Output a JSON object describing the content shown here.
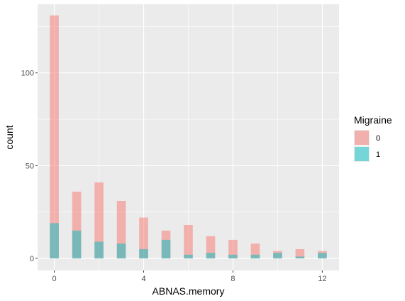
{
  "chart_data": {
    "type": "bar",
    "title": "",
    "xlabel": "ABNAS.memory",
    "ylabel": "count",
    "xlim": [
      -0.75,
      12.75
    ],
    "ylim": [
      -6.5,
      137
    ],
    "x_ticks": [
      0,
      4,
      8,
      12
    ],
    "x_tick_labels": [
      "0",
      "4",
      "8",
      "12"
    ],
    "y_ticks": [
      0,
      50,
      100
    ],
    "y_tick_labels": [
      "0",
      "50",
      "100"
    ],
    "grid": true,
    "position": "identity",
    "legend": {
      "title": "Migraine",
      "placement": "right"
    },
    "x": [
      0,
      1,
      2,
      3,
      4,
      5,
      6,
      7,
      8,
      9,
      10,
      11,
      12
    ],
    "series": [
      {
        "name": "0",
        "color": "#F8766D",
        "values": [
          131,
          36,
          41,
          31,
          22,
          15,
          18,
          12,
          10,
          8,
          4,
          5,
          4
        ]
      },
      {
        "name": "1",
        "color": "#00BFC4",
        "values": [
          19,
          15,
          9,
          8,
          5,
          10,
          2,
          3,
          2,
          2,
          3,
          1,
          3
        ]
      }
    ]
  }
}
